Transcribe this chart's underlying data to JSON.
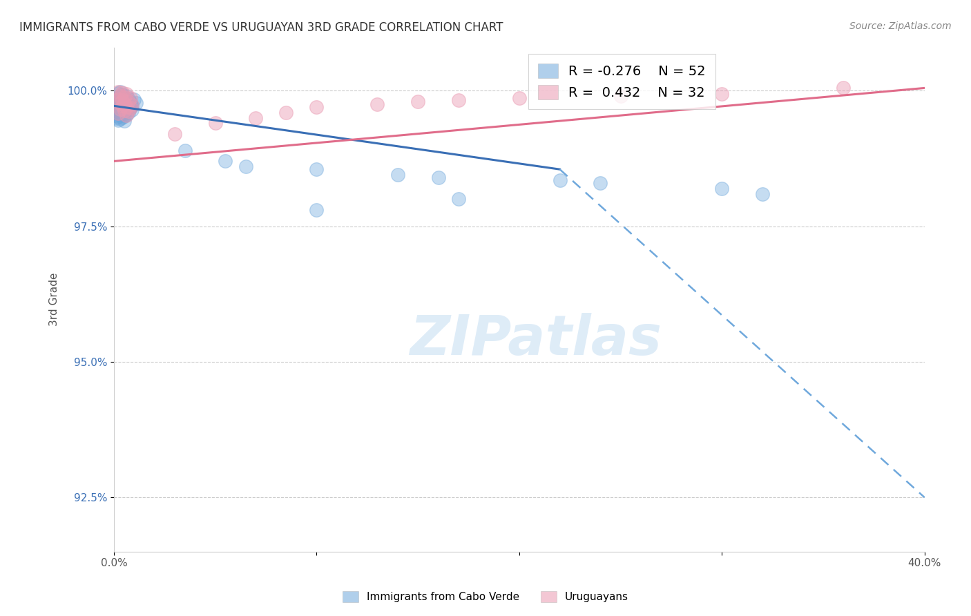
{
  "title": "IMMIGRANTS FROM CABO VERDE VS URUGUAYAN 3RD GRADE CORRELATION CHART",
  "source": "Source: ZipAtlas.com",
  "xlabel_blue": "Immigrants from Cabo Verde",
  "xlabel_pink": "Uruguayans",
  "ylabel": "3rd Grade",
  "x_min": 0.0,
  "x_max": 0.4,
  "y_min": 0.915,
  "y_max": 1.008,
  "y_ticks": [
    0.925,
    0.95,
    0.975,
    1.0
  ],
  "y_tick_labels": [
    "92.5%",
    "95.0%",
    "97.5%",
    "100.0%"
  ],
  "x_ticks": [
    0.0,
    0.1,
    0.2,
    0.3,
    0.4
  ],
  "x_tick_labels": [
    "0.0%",
    "",
    "",
    "",
    "40.0%"
  ],
  "blue_R": "-0.276",
  "blue_N": "52",
  "pink_R": "0.432",
  "pink_N": "32",
  "blue_color": "#6fa8dc",
  "pink_color": "#ea9ab2",
  "blue_scatter": [
    [
      0.002,
      0.9995
    ],
    [
      0.003,
      0.9998
    ],
    [
      0.004,
      0.9993
    ],
    [
      0.006,
      0.999
    ],
    [
      0.002,
      0.9988
    ],
    [
      0.005,
      0.9987
    ],
    [
      0.007,
      0.9985
    ],
    [
      0.01,
      0.9984
    ],
    [
      0.003,
      0.9982
    ],
    [
      0.006,
      0.998
    ],
    [
      0.008,
      0.9979
    ],
    [
      0.011,
      0.9978
    ],
    [
      0.002,
      0.9976
    ],
    [
      0.004,
      0.9975
    ],
    [
      0.007,
      0.9974
    ],
    [
      0.009,
      0.9973
    ],
    [
      0.001,
      0.9972
    ],
    [
      0.003,
      0.9971
    ],
    [
      0.005,
      0.997
    ],
    [
      0.008,
      0.9969
    ],
    [
      0.002,
      0.9968
    ],
    [
      0.004,
      0.9967
    ],
    [
      0.006,
      0.9966
    ],
    [
      0.009,
      0.9965
    ],
    [
      0.001,
      0.9963
    ],
    [
      0.003,
      0.9962
    ],
    [
      0.005,
      0.9961
    ],
    [
      0.007,
      0.996
    ],
    [
      0.002,
      0.9958
    ],
    [
      0.004,
      0.9957
    ],
    [
      0.006,
      0.9956
    ],
    [
      0.001,
      0.9955
    ],
    [
      0.003,
      0.9954
    ],
    [
      0.005,
      0.9953
    ],
    [
      0.002,
      0.9952
    ],
    [
      0.004,
      0.9951
    ],
    [
      0.001,
      0.9949
    ],
    [
      0.003,
      0.9948
    ],
    [
      0.002,
      0.9946
    ],
    [
      0.005,
      0.9945
    ],
    [
      0.035,
      0.989
    ],
    [
      0.055,
      0.987
    ],
    [
      0.065,
      0.986
    ],
    [
      0.1,
      0.9855
    ],
    [
      0.14,
      0.9845
    ],
    [
      0.16,
      0.984
    ],
    [
      0.22,
      0.9835
    ],
    [
      0.24,
      0.983
    ],
    [
      0.3,
      0.982
    ],
    [
      0.32,
      0.981
    ],
    [
      0.17,
      0.98
    ],
    [
      0.1,
      0.978
    ]
  ],
  "pink_scatter": [
    [
      0.002,
      0.9998
    ],
    [
      0.004,
      0.9996
    ],
    [
      0.006,
      0.9994
    ],
    [
      0.003,
      0.999
    ],
    [
      0.005,
      0.9988
    ],
    [
      0.008,
      0.9986
    ],
    [
      0.002,
      0.9984
    ],
    [
      0.004,
      0.9982
    ],
    [
      0.007,
      0.998
    ],
    [
      0.003,
      0.9978
    ],
    [
      0.005,
      0.9976
    ],
    [
      0.009,
      0.9974
    ],
    [
      0.004,
      0.9972
    ],
    [
      0.006,
      0.997
    ],
    [
      0.008,
      0.9968
    ],
    [
      0.003,
      0.9966
    ],
    [
      0.005,
      0.9964
    ],
    [
      0.007,
      0.9962
    ],
    [
      0.002,
      0.9958
    ],
    [
      0.006,
      0.9954
    ],
    [
      0.03,
      0.992
    ],
    [
      0.05,
      0.994
    ],
    [
      0.07,
      0.995
    ],
    [
      0.085,
      0.996
    ],
    [
      0.1,
      0.997
    ],
    [
      0.13,
      0.9975
    ],
    [
      0.15,
      0.998
    ],
    [
      0.17,
      0.9983
    ],
    [
      0.2,
      0.9987
    ],
    [
      0.25,
      0.999
    ],
    [
      0.3,
      0.9994
    ],
    [
      0.36,
      1.0005
    ]
  ],
  "blue_trendline_solid": [
    [
      0.0,
      0.9972
    ],
    [
      0.22,
      0.9855
    ]
  ],
  "blue_trendline_dashed": [
    [
      0.22,
      0.9855
    ],
    [
      0.4,
      0.925
    ]
  ],
  "pink_trendline": [
    [
      0.0,
      0.987
    ],
    [
      0.4,
      1.0005
    ]
  ],
  "watermark": "ZIPatlas",
  "watermark_color": "#d0e4f5",
  "background_color": "#ffffff"
}
